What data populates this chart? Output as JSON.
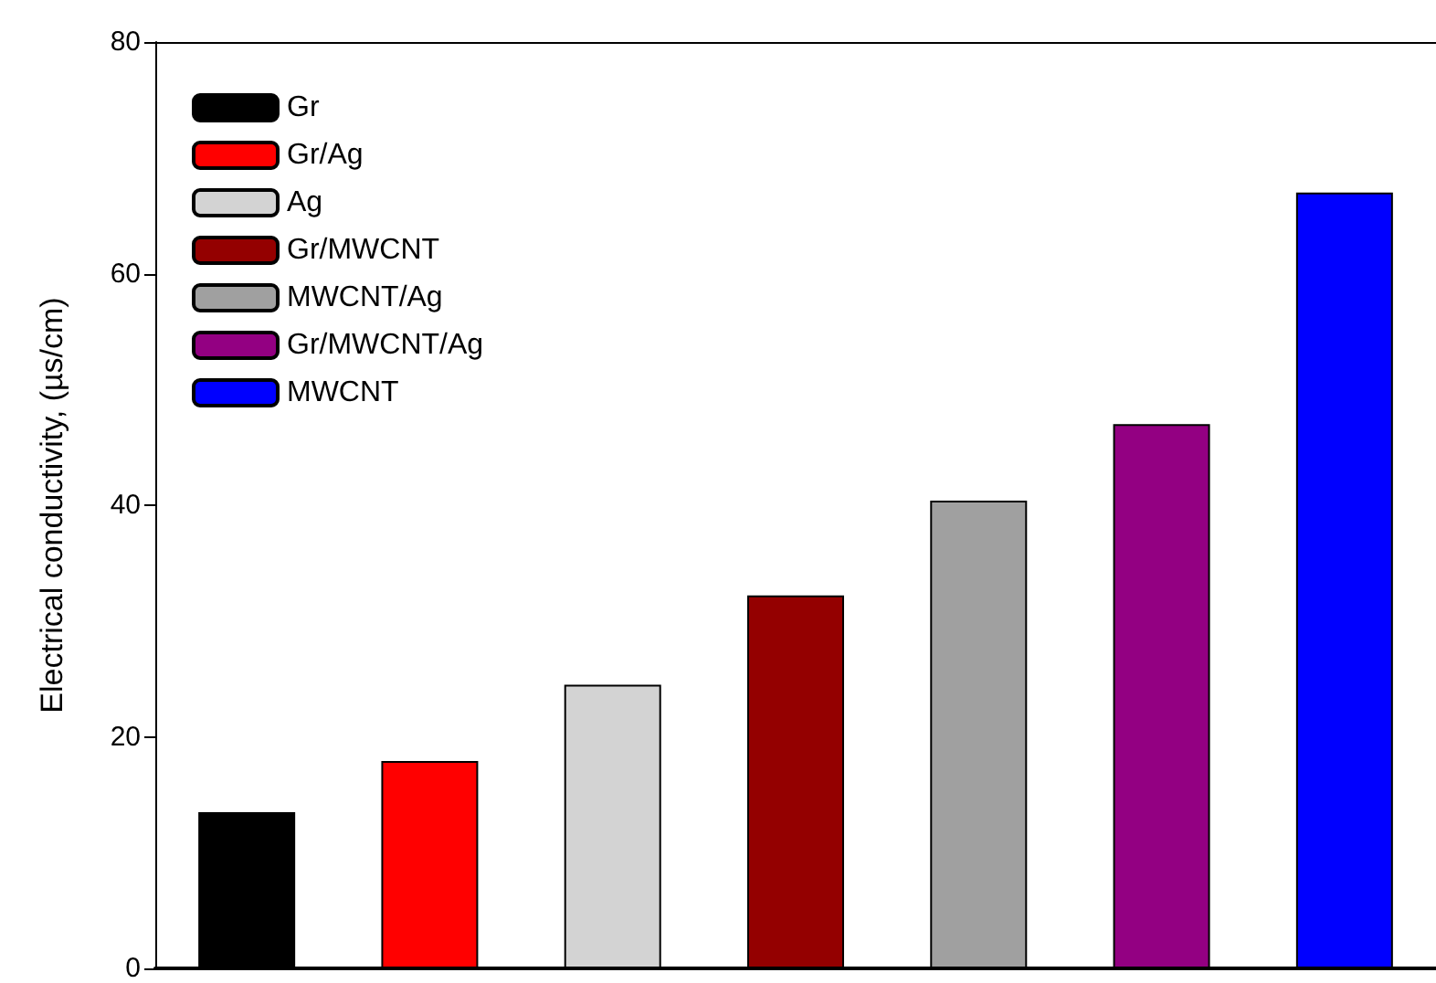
{
  "chart_data": {
    "type": "bar",
    "ylabel": "Electrical conductivity, (µs/cm)",
    "categories": [
      null,
      null,
      null,
      null,
      null,
      null,
      null
    ],
    "stacked": true,
    "series": [
      {
        "name": "Gr",
        "color": "#000000",
        "values": [
          13.5,
          null,
          null,
          null,
          null,
          null,
          null
        ]
      },
      {
        "name": "Gr/Ag",
        "color": "#ff0000",
        "values": [
          null,
          17.9,
          null,
          null,
          null,
          null,
          null
        ]
      },
      {
        "name": "Ag",
        "color": "#d3d3d3",
        "values": [
          null,
          null,
          24.5,
          null,
          null,
          null,
          null
        ]
      },
      {
        "name": "Gr/MWCNT",
        "color": "#940000",
        "values": [
          null,
          null,
          null,
          32.2,
          null,
          null,
          null
        ]
      },
      {
        "name": "MWCNT/Ag",
        "color": "#a0a0a0",
        "values": [
          null,
          null,
          null,
          null,
          40.4,
          null,
          null
        ]
      },
      {
        "name": "Gr/MWCNT/Ag",
        "color": "#930082",
        "values": [
          null,
          null,
          null,
          null,
          null,
          47,
          null
        ]
      },
      {
        "name": "MWCNT",
        "color": "#0000ff",
        "values": [
          null,
          null,
          null,
          null,
          null,
          null,
          67
        ]
      }
    ],
    "ylim": [
      0,
      80
    ],
    "yticks": [
      0,
      20,
      40,
      60,
      80
    ],
    "grid": false,
    "legend": "top left"
  }
}
